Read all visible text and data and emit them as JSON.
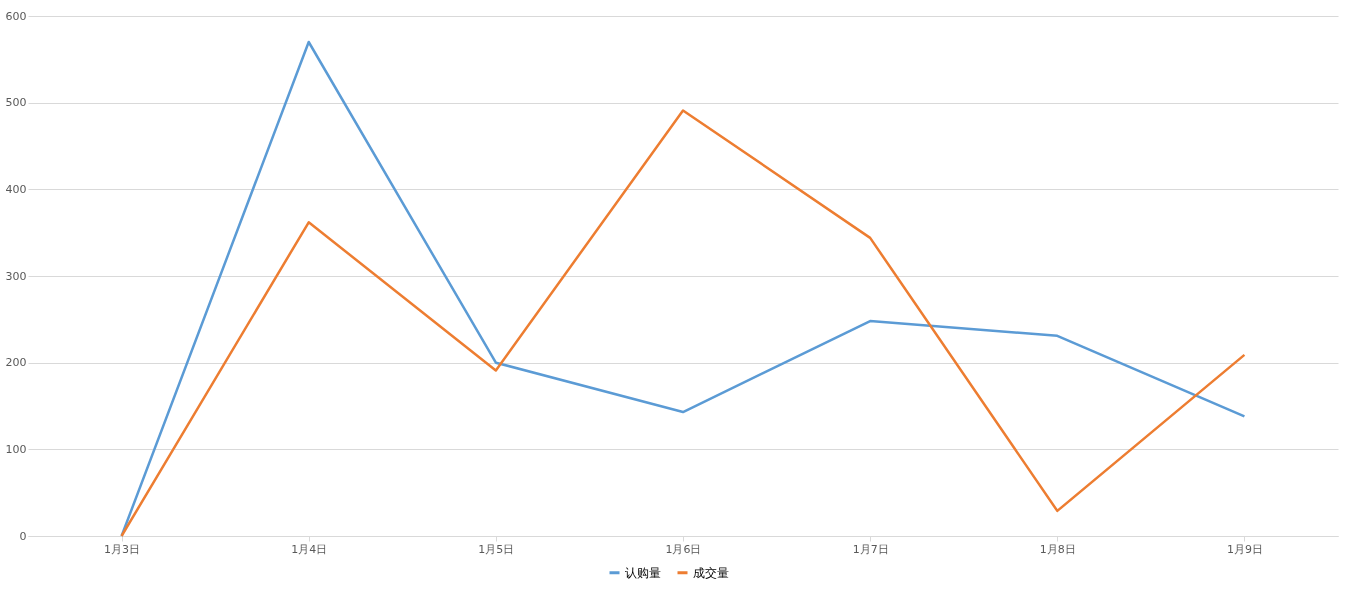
{
  "chart_data": {
    "type": "line",
    "categories": [
      "1月3日",
      "1月4日",
      "1月5日",
      "1月6日",
      "1月7日",
      "1月8日",
      "1月9日"
    ],
    "series": [
      {
        "name": "认购量",
        "color": "#5b9bd5",
        "values": [
          0,
          570,
          200,
          143,
          248,
          231,
          138
        ]
      },
      {
        "name": "成交量",
        "color": "#ed7d31",
        "values": [
          0,
          362,
          191,
          491,
          344,
          29,
          209
        ]
      }
    ],
    "ylim": [
      0,
      600
    ],
    "yticks": [
      0,
      100,
      200,
      300,
      400,
      500,
      600
    ],
    "grid": "y",
    "legend": "bottom",
    "marker": "none",
    "line_style": "solid"
  }
}
